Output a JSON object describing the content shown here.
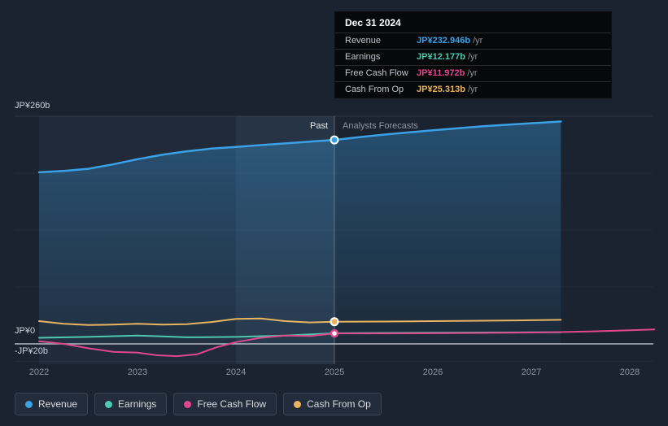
{
  "tooltip": {
    "date": "Dec 31 2024",
    "rows": [
      {
        "label": "Revenue",
        "value": "JP¥232.946b",
        "suffix": "/yr",
        "color": "#3ba1e6"
      },
      {
        "label": "Earnings",
        "value": "JP¥12.177b",
        "suffix": "/yr",
        "color": "#4ec9b1"
      },
      {
        "label": "Free Cash Flow",
        "value": "JP¥11.972b",
        "suffix": "/yr",
        "color": "#e0488e"
      },
      {
        "label": "Cash From Op",
        "value": "JP¥25.313b",
        "suffix": "/yr",
        "color": "#e8b45f"
      }
    ]
  },
  "chart_data": {
    "type": "line",
    "x_unit": "year",
    "x_ticks": [
      2022,
      2023,
      2024,
      2025,
      2026,
      2027,
      2028
    ],
    "divider_year": 2025,
    "highlight_from": 2024,
    "past_label": "Past",
    "forecast_label": "Analysts Forecasts",
    "y_axis": {
      "unit": "JP¥ billions",
      "gridlines": [
        260,
        195,
        130,
        65,
        0,
        -20
      ],
      "labels": [
        {
          "value": 260,
          "text": "JP¥260b"
        },
        {
          "value": 0,
          "text": "JP¥0"
        },
        {
          "value": -20,
          "text": "-JP¥20b"
        }
      ]
    },
    "series": [
      {
        "name": "Earnings",
        "color": "#4ec9b1",
        "width": 2,
        "marker": null,
        "area": false,
        "x": [
          2022,
          2022.5,
          2023,
          2023.25,
          2023.5,
          2024,
          2024.5,
          2025,
          2025.5,
          2026,
          2026.5,
          2027,
          2027.3
        ],
        "y": [
          7,
          8,
          9.5,
          8.5,
          7.5,
          8,
          9.5,
          12.177,
          12.5,
          12.8,
          13,
          13.2,
          13.3
        ]
      },
      {
        "name": "Free Cash Flow",
        "color": "#e0488e",
        "width": 2,
        "marker": "hollow",
        "area": false,
        "x": [
          2022,
          2022.25,
          2022.5,
          2022.75,
          2023,
          2023.2,
          2023.4,
          2023.6,
          2023.8,
          2024,
          2024.25,
          2024.5,
          2024.75,
          2025,
          2025.5,
          2026,
          2026.5,
          2027,
          2027.3,
          2027.7,
          2028,
          2028.25
        ],
        "y": [
          3,
          0,
          -5,
          -9,
          -10,
          -13,
          -14,
          -12,
          -4,
          2,
          7,
          9.5,
          9,
          11.972,
          12,
          12.2,
          12.5,
          13,
          13.5,
          14.5,
          15.5,
          16.5
        ]
      },
      {
        "name": "Cash From Op",
        "color": "#e8b45f",
        "width": 2,
        "marker": "solid",
        "area": false,
        "x": [
          2022,
          2022.25,
          2022.5,
          2022.75,
          2023,
          2023.25,
          2023.5,
          2023.75,
          2024,
          2024.25,
          2024.5,
          2024.75,
          2025,
          2025.5,
          2026,
          2026.5,
          2027,
          2027.3
        ],
        "y": [
          26,
          23,
          21.5,
          22,
          23,
          22,
          22.5,
          25,
          28.5,
          29,
          26,
          24.5,
          25.313,
          25.5,
          26,
          26.5,
          27,
          27.5
        ]
      },
      {
        "name": "Revenue",
        "color": "#3ba1e6",
        "width": 2.5,
        "marker": "solid",
        "area": true,
        "x": [
          2022,
          2022.25,
          2022.5,
          2022.75,
          2023,
          2023.25,
          2023.5,
          2023.75,
          2024,
          2024.25,
          2024.5,
          2024.75,
          2025,
          2025.25,
          2025.5,
          2025.75,
          2026,
          2026.5,
          2027,
          2027.3
        ],
        "y": [
          196,
          197.5,
          200,
          205,
          211,
          216,
          220,
          223,
          225,
          227,
          229,
          231,
          232.946,
          236,
          239,
          241.5,
          244,
          248.5,
          252,
          254
        ]
      }
    ]
  },
  "legend": {
    "items": [
      {
        "label": "Revenue",
        "color": "#3ba1e6"
      },
      {
        "label": "Earnings",
        "color": "#4ec9b1"
      },
      {
        "label": "Free Cash Flow",
        "color": "#e0488e"
      },
      {
        "label": "Cash From Op",
        "color": "#e8b45f"
      }
    ]
  }
}
